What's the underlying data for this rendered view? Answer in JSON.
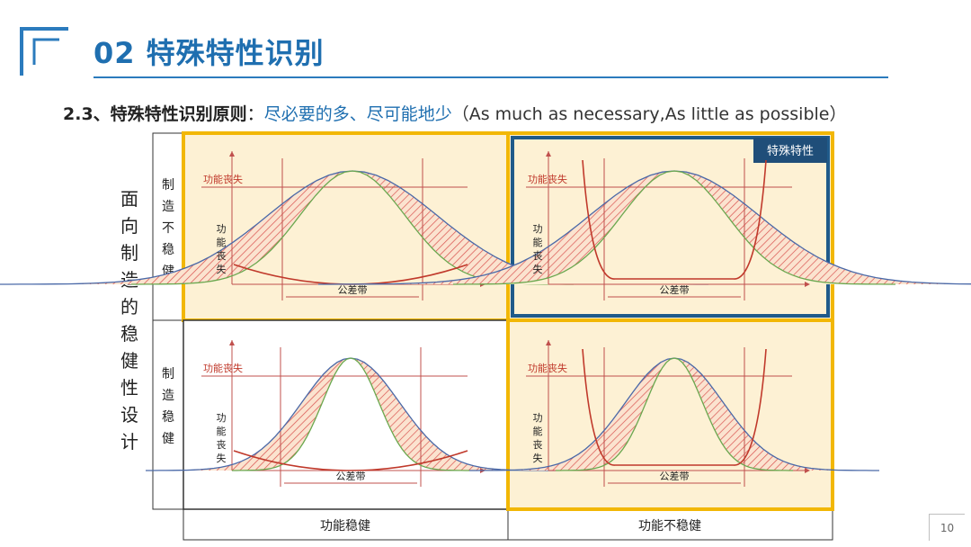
{
  "header": {
    "title": "02 特殊特性识别",
    "accent_color": "#1f6fb0"
  },
  "subtitle": {
    "lead": "2.3、特殊特性识别原则",
    "colon": "：",
    "principle": "尽必要的多、尽可能地少",
    "english": "（As much as necessary,As little as possible）"
  },
  "matrix": {
    "y_axis_title": "面向制造的稳健性设计",
    "row_labels": [
      "制造不稳健",
      "制造稳健"
    ],
    "col_labels": [
      "功能稳健",
      "功能不稳健"
    ],
    "quadrant_labels": {
      "functional_loss": "功能丧失",
      "tolerance_band": "公差带",
      "y_axis": "功能丧失"
    },
    "special_badge": "特殊特性",
    "highlight_color": "#f2b705",
    "highlight_fill": "#fdf1d4",
    "special_border_color": "#1f5a8a"
  },
  "footer": {
    "page_number": "10"
  }
}
